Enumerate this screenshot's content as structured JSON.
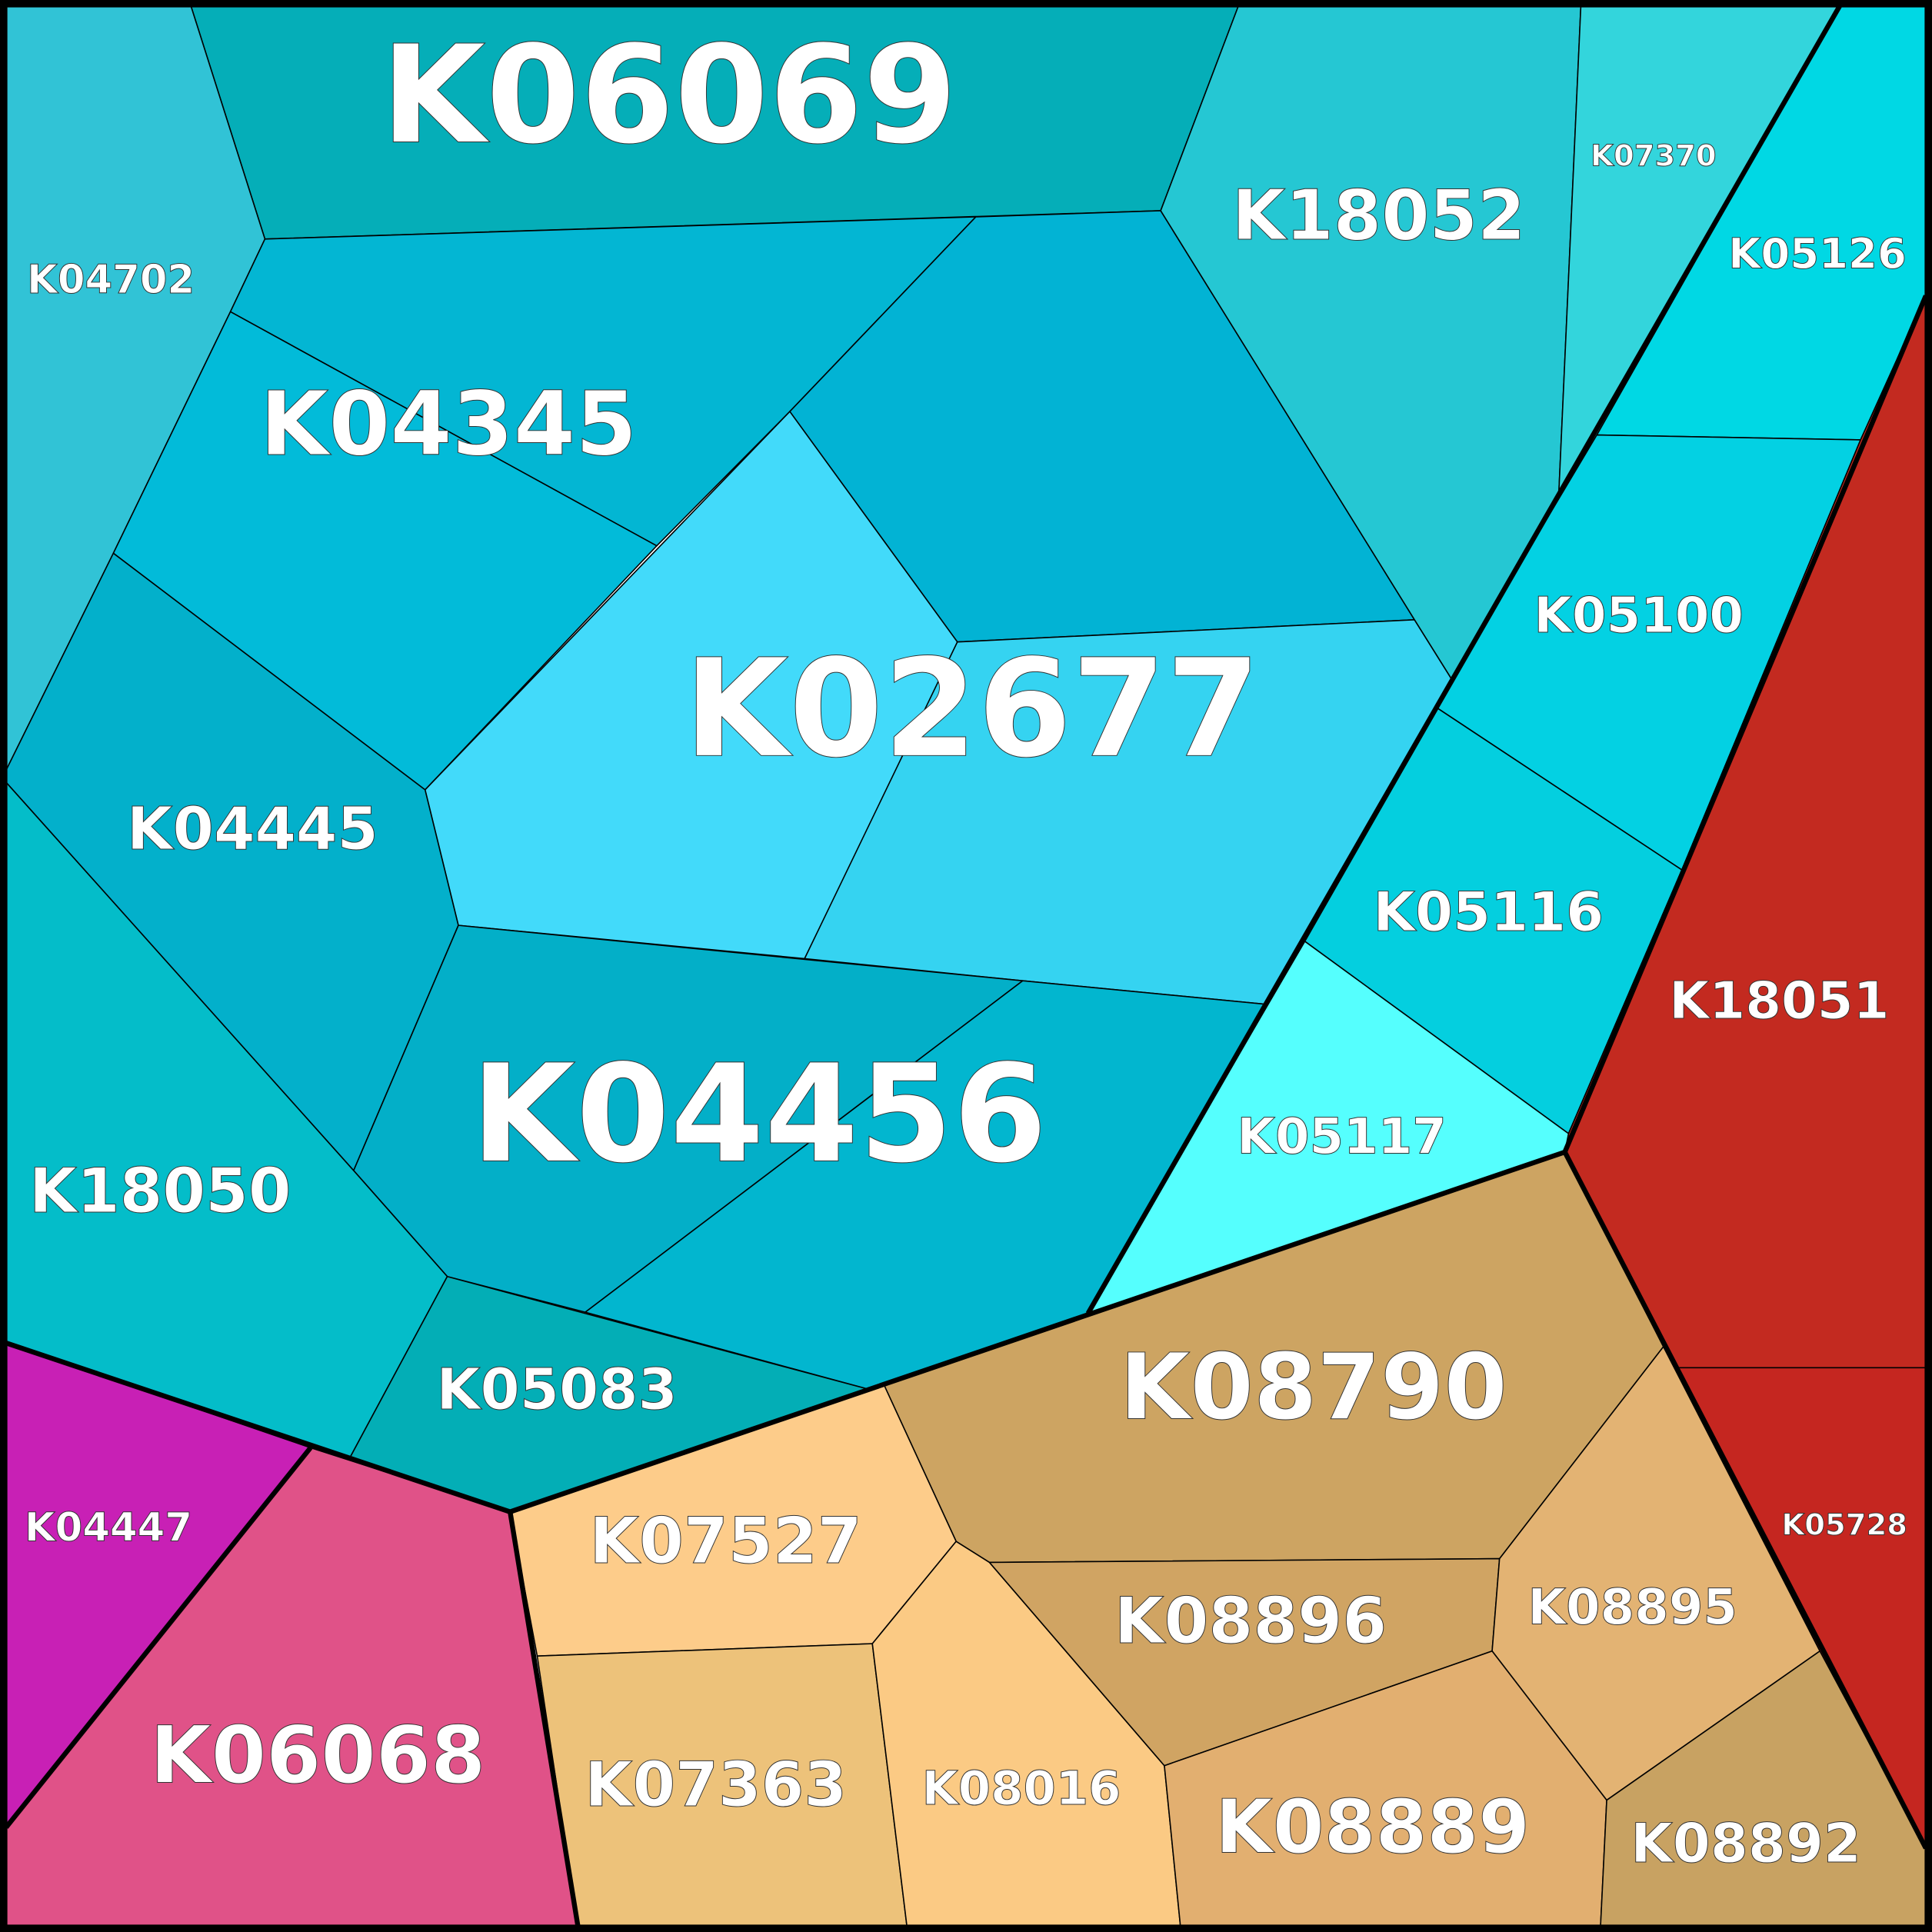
{
  "cells": [
    {
      "label": "K06069"
    },
    {
      "label": "K04702"
    },
    {
      "label": "K04345"
    },
    {
      "label": "K02677"
    },
    {
      "label": "K18052"
    },
    {
      "label": "K07370"
    },
    {
      "label": "K05126"
    },
    {
      "label": "K05100"
    },
    {
      "label": "K05116"
    },
    {
      "label": "K18051"
    },
    {
      "label": "K05117"
    },
    {
      "label": "K04445"
    },
    {
      "label": "K04456"
    },
    {
      "label": "K18050"
    },
    {
      "label": "K05083"
    },
    {
      "label": "K04447"
    },
    {
      "label": "K06068"
    },
    {
      "label": "K08790"
    },
    {
      "label": "K07527"
    },
    {
      "label": "K07363"
    },
    {
      "label": "K08016"
    },
    {
      "label": "K08896"
    },
    {
      "label": "K08895"
    },
    {
      "label": "K08889"
    },
    {
      "label": "K08892"
    },
    {
      "label": "K05728"
    }
  ]
}
